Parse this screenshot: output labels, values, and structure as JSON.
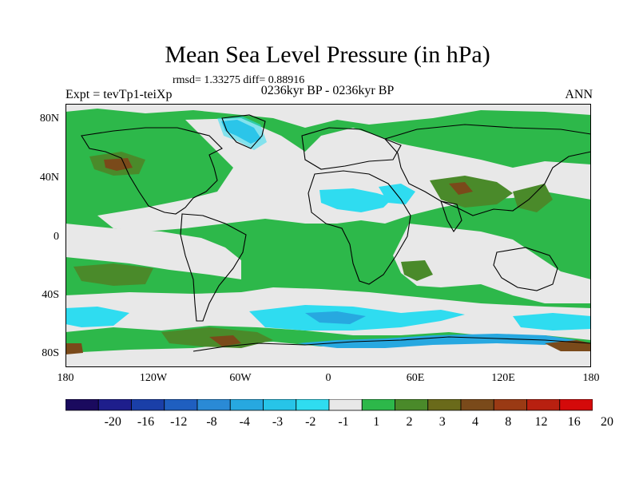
{
  "title": "Mean Sea Level Pressure (in hPa)",
  "stats_line": "rmsd= 1.33275 diff= 0.88916",
  "expt_label": "Expt = tevTp1-teiXp",
  "period_label": "0236kyr BP - 0236kyr BP",
  "season_label": "ANN",
  "lat_labels": [
    "80N",
    "40N",
    "0",
    "40S",
    "80S"
  ],
  "lon_labels": [
    "180",
    "120W",
    "60W",
    "0",
    "60E",
    "120E",
    "180"
  ],
  "colorbar": {
    "colors": [
      "#1a0a5e",
      "#1e1e8c",
      "#1a3fa8",
      "#1f5fc0",
      "#2a8ad6",
      "#27a8e0",
      "#27c4e8",
      "#2fdcf0",
      "#e8e8e8",
      "#2db84a",
      "#4a8a2a",
      "#6a6a1a",
      "#7a4a1a",
      "#9a3a14",
      "#b82010",
      "#d40a0a"
    ],
    "labels": [
      "-20",
      "-16",
      "-12",
      "-8",
      "-4",
      "-3",
      "-2",
      "-1",
      "1",
      "2",
      "3",
      "4",
      "8",
      "12",
      "16",
      "20"
    ]
  },
  "field_colors": {
    "ocean_green": "#2db84a",
    "neutral": "#e8e8e8",
    "light_blue": "#2fdcf0",
    "mid_blue": "#27a8e0",
    "dark_blue": "#1f5fc0",
    "dark_green": "#4a8a2a",
    "brown": "#7a4a1a",
    "coast": "#000000"
  }
}
